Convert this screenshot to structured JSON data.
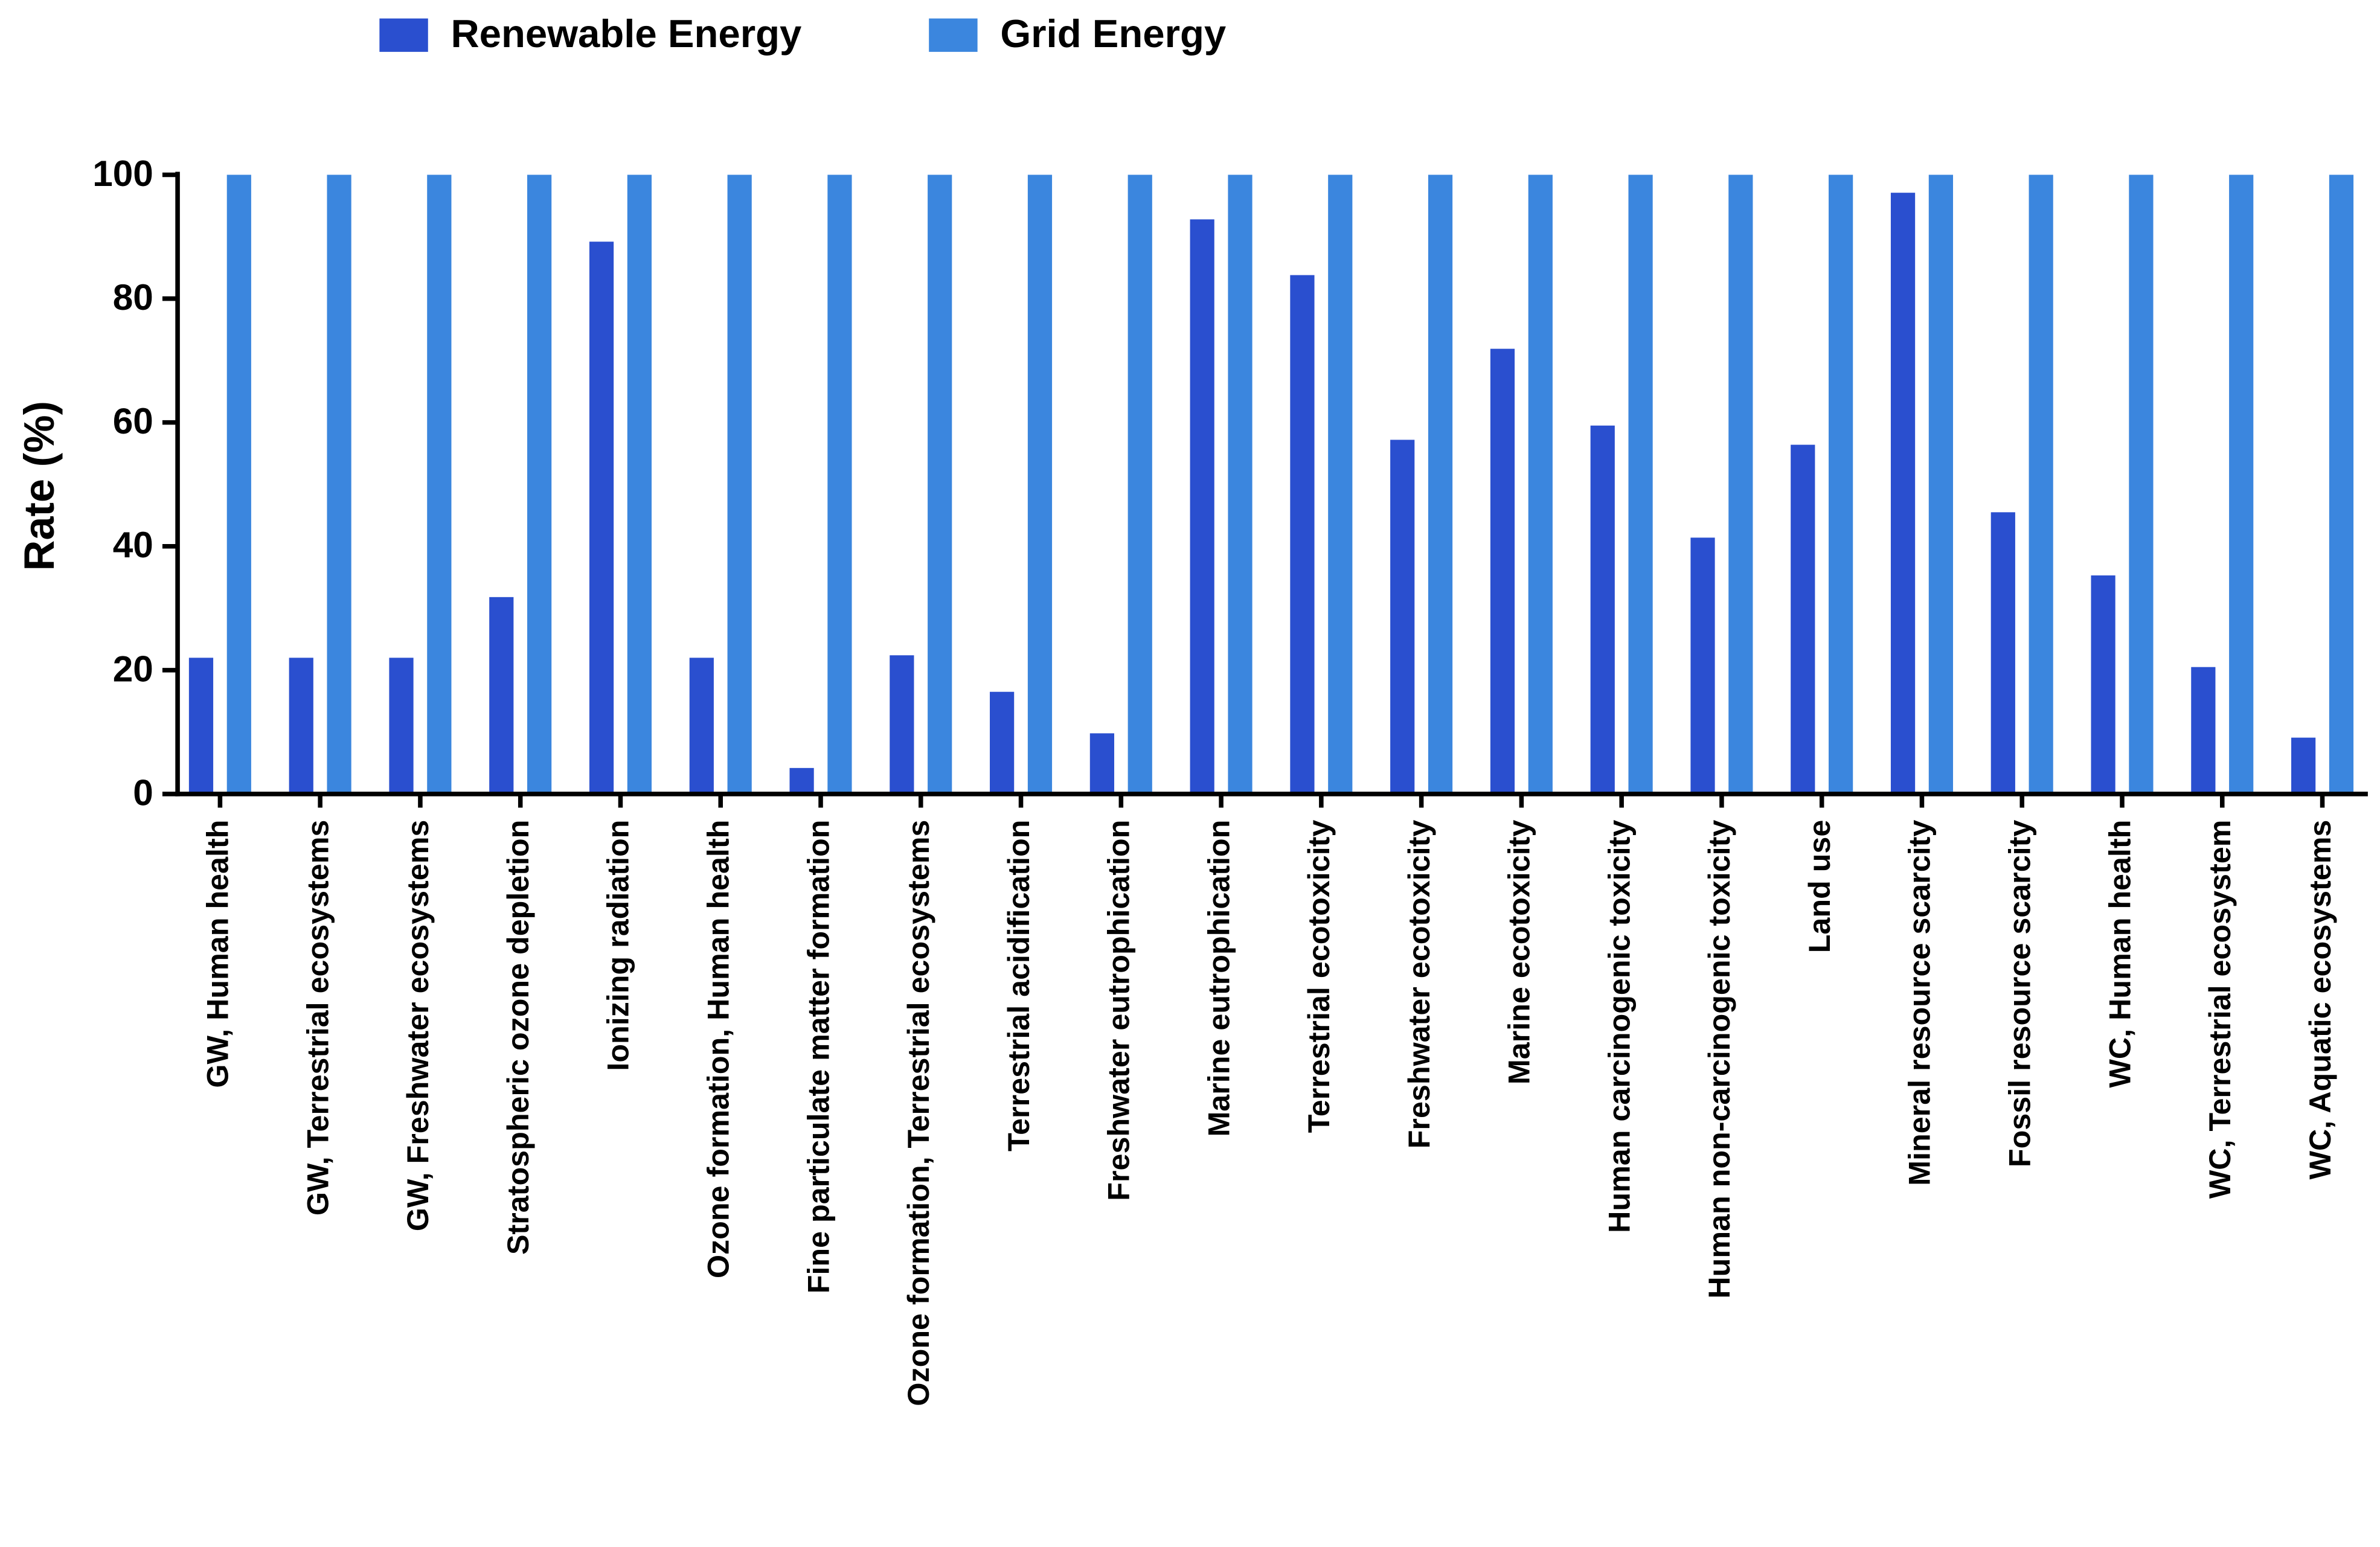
{
  "chart_data": {
    "type": "bar",
    "y_label": "Rate (%)",
    "categories": [
      "GW, Human health",
      "GW, Terrestrial ecosystems",
      "GW, Freshwater ecosystems",
      "Stratospheric ozone depletion",
      "Ionizing radiation",
      "Ozone formation, Human health",
      "Fine particulate matter formation",
      "Ozone formation, Terrestrial ecosystems",
      "Terrestrial acidification",
      "Freshwater eutrophication",
      "Marine eutrophication",
      "Terrestrial ecotoxicity",
      "Freshwater ecotoxicity",
      "Marine ecotoxicity",
      "Human carcinogenic toxicity",
      "Human non-carcinogenic toxicity",
      "Land use",
      "Mineral resource scarcity",
      "Fossil resource scarcity",
      "WC, Human health",
      "WC, Terrestrial ecosystem",
      "WC, Aquatic ecosystems"
    ],
    "series": [
      {
        "name": "Renewable Energy",
        "color": "#2a4fcf",
        "values": [
          22,
          22,
          22,
          31.8,
          89.2,
          22,
          4.2,
          22.4,
          16.5,
          9.8,
          92.8,
          83.8,
          57.2,
          71.9,
          59.5,
          41.4,
          56.4,
          97.1,
          45.5,
          35.3,
          20.5,
          9.1
        ]
      },
      {
        "name": "Grid Energy",
        "color": "#3b86de",
        "values": [
          100,
          100,
          100,
          100,
          100,
          100,
          100,
          100,
          100,
          100,
          100,
          100,
          100,
          100,
          100,
          100,
          100,
          100,
          100,
          100,
          100,
          100
        ]
      }
    ],
    "ylim": [
      0,
      100
    ],
    "yticks": [
      0,
      20,
      40,
      60,
      80,
      100
    ],
    "legend": "top"
  }
}
